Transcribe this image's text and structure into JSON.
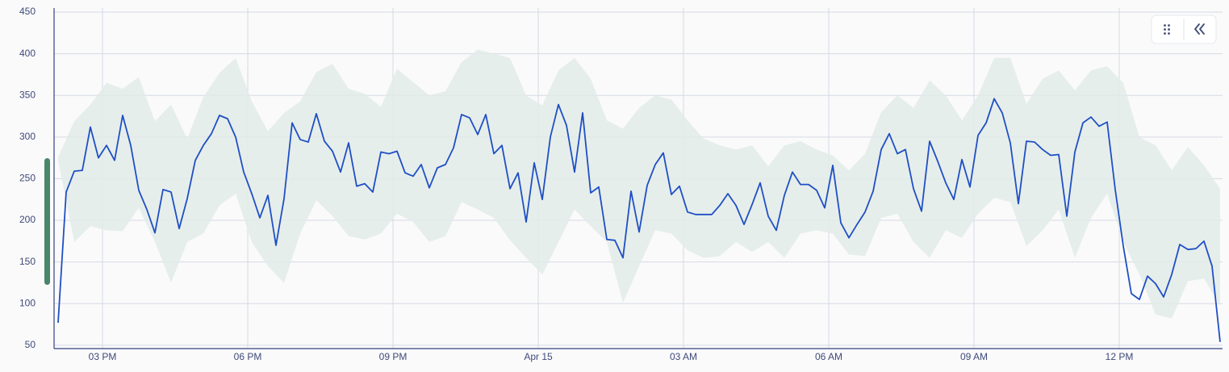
{
  "chart_data": {
    "type": "line",
    "xlim": [
      840,
      2288
    ],
    "xticks": [
      {
        "value": 900,
        "label": "03 PM"
      },
      {
        "value": 1080,
        "label": "06 PM"
      },
      {
        "value": 1260,
        "label": "09 PM"
      },
      {
        "value": 1440,
        "label": "Apr 15"
      },
      {
        "value": 1620,
        "label": "03 AM"
      },
      {
        "value": 1800,
        "label": "06 AM"
      },
      {
        "value": 1980,
        "label": "09 AM"
      },
      {
        "value": 2160,
        "label": "12 PM"
      }
    ],
    "ylim": [
      46,
      450
    ],
    "yticks": [
      50,
      100,
      150,
      200,
      250,
      300,
      350,
      400,
      450
    ],
    "grid": true,
    "x": [
      845,
      855,
      865,
      875,
      885,
      895,
      905,
      915,
      925,
      935,
      945,
      955,
      965,
      975,
      985,
      995,
      1005,
      1015,
      1025,
      1035,
      1045,
      1055,
      1065,
      1075,
      1085,
      1095,
      1105,
      1115,
      1125,
      1135,
      1145,
      1155,
      1165,
      1175,
      1185,
      1195,
      1205,
      1215,
      1225,
      1235,
      1245,
      1255,
      1265,
      1275,
      1285,
      1295,
      1305,
      1315,
      1325,
      1335,
      1345,
      1355,
      1365,
      1375,
      1385,
      1395,
      1405,
      1415,
      1425,
      1435,
      1445,
      1455,
      1465,
      1475,
      1485,
      1495,
      1505,
      1515,
      1525,
      1535,
      1545,
      1555,
      1565,
      1575,
      1585,
      1595,
      1605,
      1615,
      1625,
      1635,
      1645,
      1655,
      1665,
      1675,
      1685,
      1695,
      1705,
      1715,
      1725,
      1735,
      1745,
      1755,
      1765,
      1775,
      1785,
      1795,
      1805,
      1815,
      1825,
      1835,
      1845,
      1855,
      1865,
      1875,
      1885,
      1895,
      1905,
      1915,
      1925,
      1935,
      1945,
      1955,
      1965,
      1975,
      1985,
      1995,
      2005,
      2015,
      2025,
      2035,
      2045,
      2055,
      2065,
      2075,
      2085,
      2095,
      2105,
      2115,
      2125,
      2135,
      2145,
      2155,
      2165,
      2175,
      2185,
      2195,
      2205,
      2215,
      2225,
      2235,
      2245,
      2255,
      2265,
      2275,
      2285
    ],
    "series": [
      {
        "color": "#1f4fc4",
        "values": [
          77,
          234,
          259,
          260,
          312,
          275,
          290,
          272,
          326,
          290,
          236,
          213,
          185,
          237,
          234,
          190,
          226,
          272,
          290,
          304,
          326,
          322,
          300,
          258,
          232,
          203,
          230,
          170,
          226,
          317,
          297,
          294,
          328,
          295,
          283,
          258,
          293,
          241,
          244,
          234,
          282,
          280,
          283,
          257,
          253,
          267,
          239,
          263,
          267,
          287,
          327,
          323,
          303,
          327,
          280,
          290,
          238,
          257,
          198,
          269,
          225,
          300,
          339,
          314,
          258,
          329,
          233,
          240,
          177,
          176,
          155,
          235,
          186,
          242,
          267,
          281,
          231,
          241,
          210,
          207,
          207,
          207,
          218,
          232,
          218,
          195,
          219,
          245,
          205,
          188,
          230,
          258,
          243,
          243,
          236,
          215,
          266,
          197,
          179,
          195,
          210,
          235,
          285,
          304,
          280,
          285,
          238,
          211,
          295,
          271,
          245,
          225,
          273,
          240,
          302,
          317,
          346,
          329,
          293,
          220,
          295,
          294,
          285,
          278,
          279,
          205,
          282,
          317,
          324,
          313,
          318,
          237,
          169,
          112,
          105,
          133,
          124,
          108,
          135,
          171,
          165,
          166,
          175,
          145,
          54
        ]
      }
    ],
    "band": {
      "color": "#e2ebe7",
      "x": [
        845,
        865,
        885,
        905,
        925,
        945,
        965,
        985,
        1005,
        1025,
        1045,
        1065,
        1085,
        1105,
        1125,
        1145,
        1165,
        1185,
        1205,
        1225,
        1245,
        1265,
        1285,
        1305,
        1325,
        1345,
        1365,
        1385,
        1405,
        1425,
        1445,
        1465,
        1485,
        1505,
        1525,
        1545,
        1565,
        1585,
        1605,
        1625,
        1645,
        1665,
        1685,
        1705,
        1725,
        1745,
        1765,
        1785,
        1805,
        1825,
        1845,
        1865,
        1885,
        1905,
        1925,
        1945,
        1965,
        1985,
        2005,
        2025,
        2045,
        2065,
        2085,
        2105,
        2125,
        2145,
        2165,
        2185,
        2205,
        2225,
        2245,
        2265,
        2285
      ],
      "upper": [
        276,
        319,
        339,
        365,
        358,
        372,
        319,
        339,
        298,
        348,
        377,
        395,
        343,
        307,
        329,
        343,
        378,
        388,
        358,
        352,
        336,
        382,
        366,
        350,
        355,
        390,
        405,
        400,
        395,
        350,
        338,
        380,
        395,
        370,
        320,
        310,
        335,
        350,
        345,
        320,
        298,
        290,
        285,
        290,
        265,
        290,
        295,
        285,
        278,
        260,
        280,
        330,
        350,
        335,
        368,
        350,
        320,
        350,
        395,
        395,
        340,
        370,
        380,
        356,
        380,
        385,
        365,
        300,
        290,
        260,
        288,
        266,
        238
      ],
      "lower": [
        272,
        174,
        193,
        188,
        187,
        215,
        174,
        125,
        174,
        184,
        218,
        232,
        174,
        145,
        125,
        184,
        224,
        205,
        181,
        177,
        184,
        208,
        198,
        174,
        181,
        222,
        213,
        203,
        176,
        155,
        135,
        174,
        213,
        193,
        174,
        101,
        145,
        188,
        184,
        164,
        155,
        157,
        174,
        162,
        174,
        155,
        184,
        188,
        184,
        159,
        157,
        203,
        208,
        174,
        155,
        188,
        179,
        208,
        227,
        222,
        169,
        188,
        213,
        155,
        203,
        232,
        174,
        135,
        87,
        82,
        127,
        130,
        98
      ]
    }
  }
}
